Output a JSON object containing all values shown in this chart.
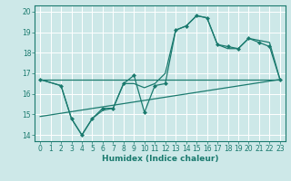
{
  "background_color": "#cde8e8",
  "grid_color": "#ffffff",
  "line_color": "#1a7a6e",
  "xlabel": "Humidex (Indice chaleur)",
  "xlim": [
    -0.5,
    23.5
  ],
  "ylim": [
    13.7,
    20.3
  ],
  "xticks": [
    0,
    1,
    2,
    3,
    4,
    5,
    6,
    7,
    8,
    9,
    10,
    11,
    12,
    13,
    14,
    15,
    16,
    17,
    18,
    19,
    20,
    21,
    22,
    23
  ],
  "yticks": [
    14,
    15,
    16,
    17,
    18,
    19,
    20
  ],
  "line1_x": [
    0,
    23
  ],
  "line1_y": [
    16.7,
    16.7
  ],
  "line2_x": [
    0,
    2,
    3,
    4,
    5,
    6,
    7,
    8,
    9,
    10,
    11,
    12,
    13,
    14,
    15,
    16,
    17,
    18,
    19,
    20,
    21,
    22,
    23
  ],
  "line2_y": [
    16.7,
    16.4,
    14.8,
    14.0,
    14.8,
    15.3,
    15.3,
    16.5,
    16.9,
    15.1,
    16.4,
    16.5,
    19.1,
    19.3,
    19.8,
    19.7,
    18.4,
    18.3,
    18.2,
    18.7,
    18.5,
    18.3,
    16.7
  ],
  "line3_x": [
    0,
    2,
    3,
    4,
    5,
    6,
    7,
    8,
    9,
    10,
    11,
    12,
    13,
    14,
    15,
    16,
    17,
    18,
    19,
    20,
    21,
    22,
    23
  ],
  "line3_y": [
    16.7,
    16.4,
    14.8,
    14.0,
    14.8,
    15.2,
    15.3,
    16.5,
    16.5,
    16.3,
    16.5,
    17.0,
    19.1,
    19.3,
    19.8,
    19.7,
    18.4,
    18.2,
    18.2,
    18.7,
    18.6,
    18.5,
    16.7
  ],
  "line4_x": [
    0,
    23
  ],
  "line4_y": [
    14.9,
    16.7
  ],
  "ticklabel_fontsize": 5.5,
  "xlabel_fontsize": 6.5
}
